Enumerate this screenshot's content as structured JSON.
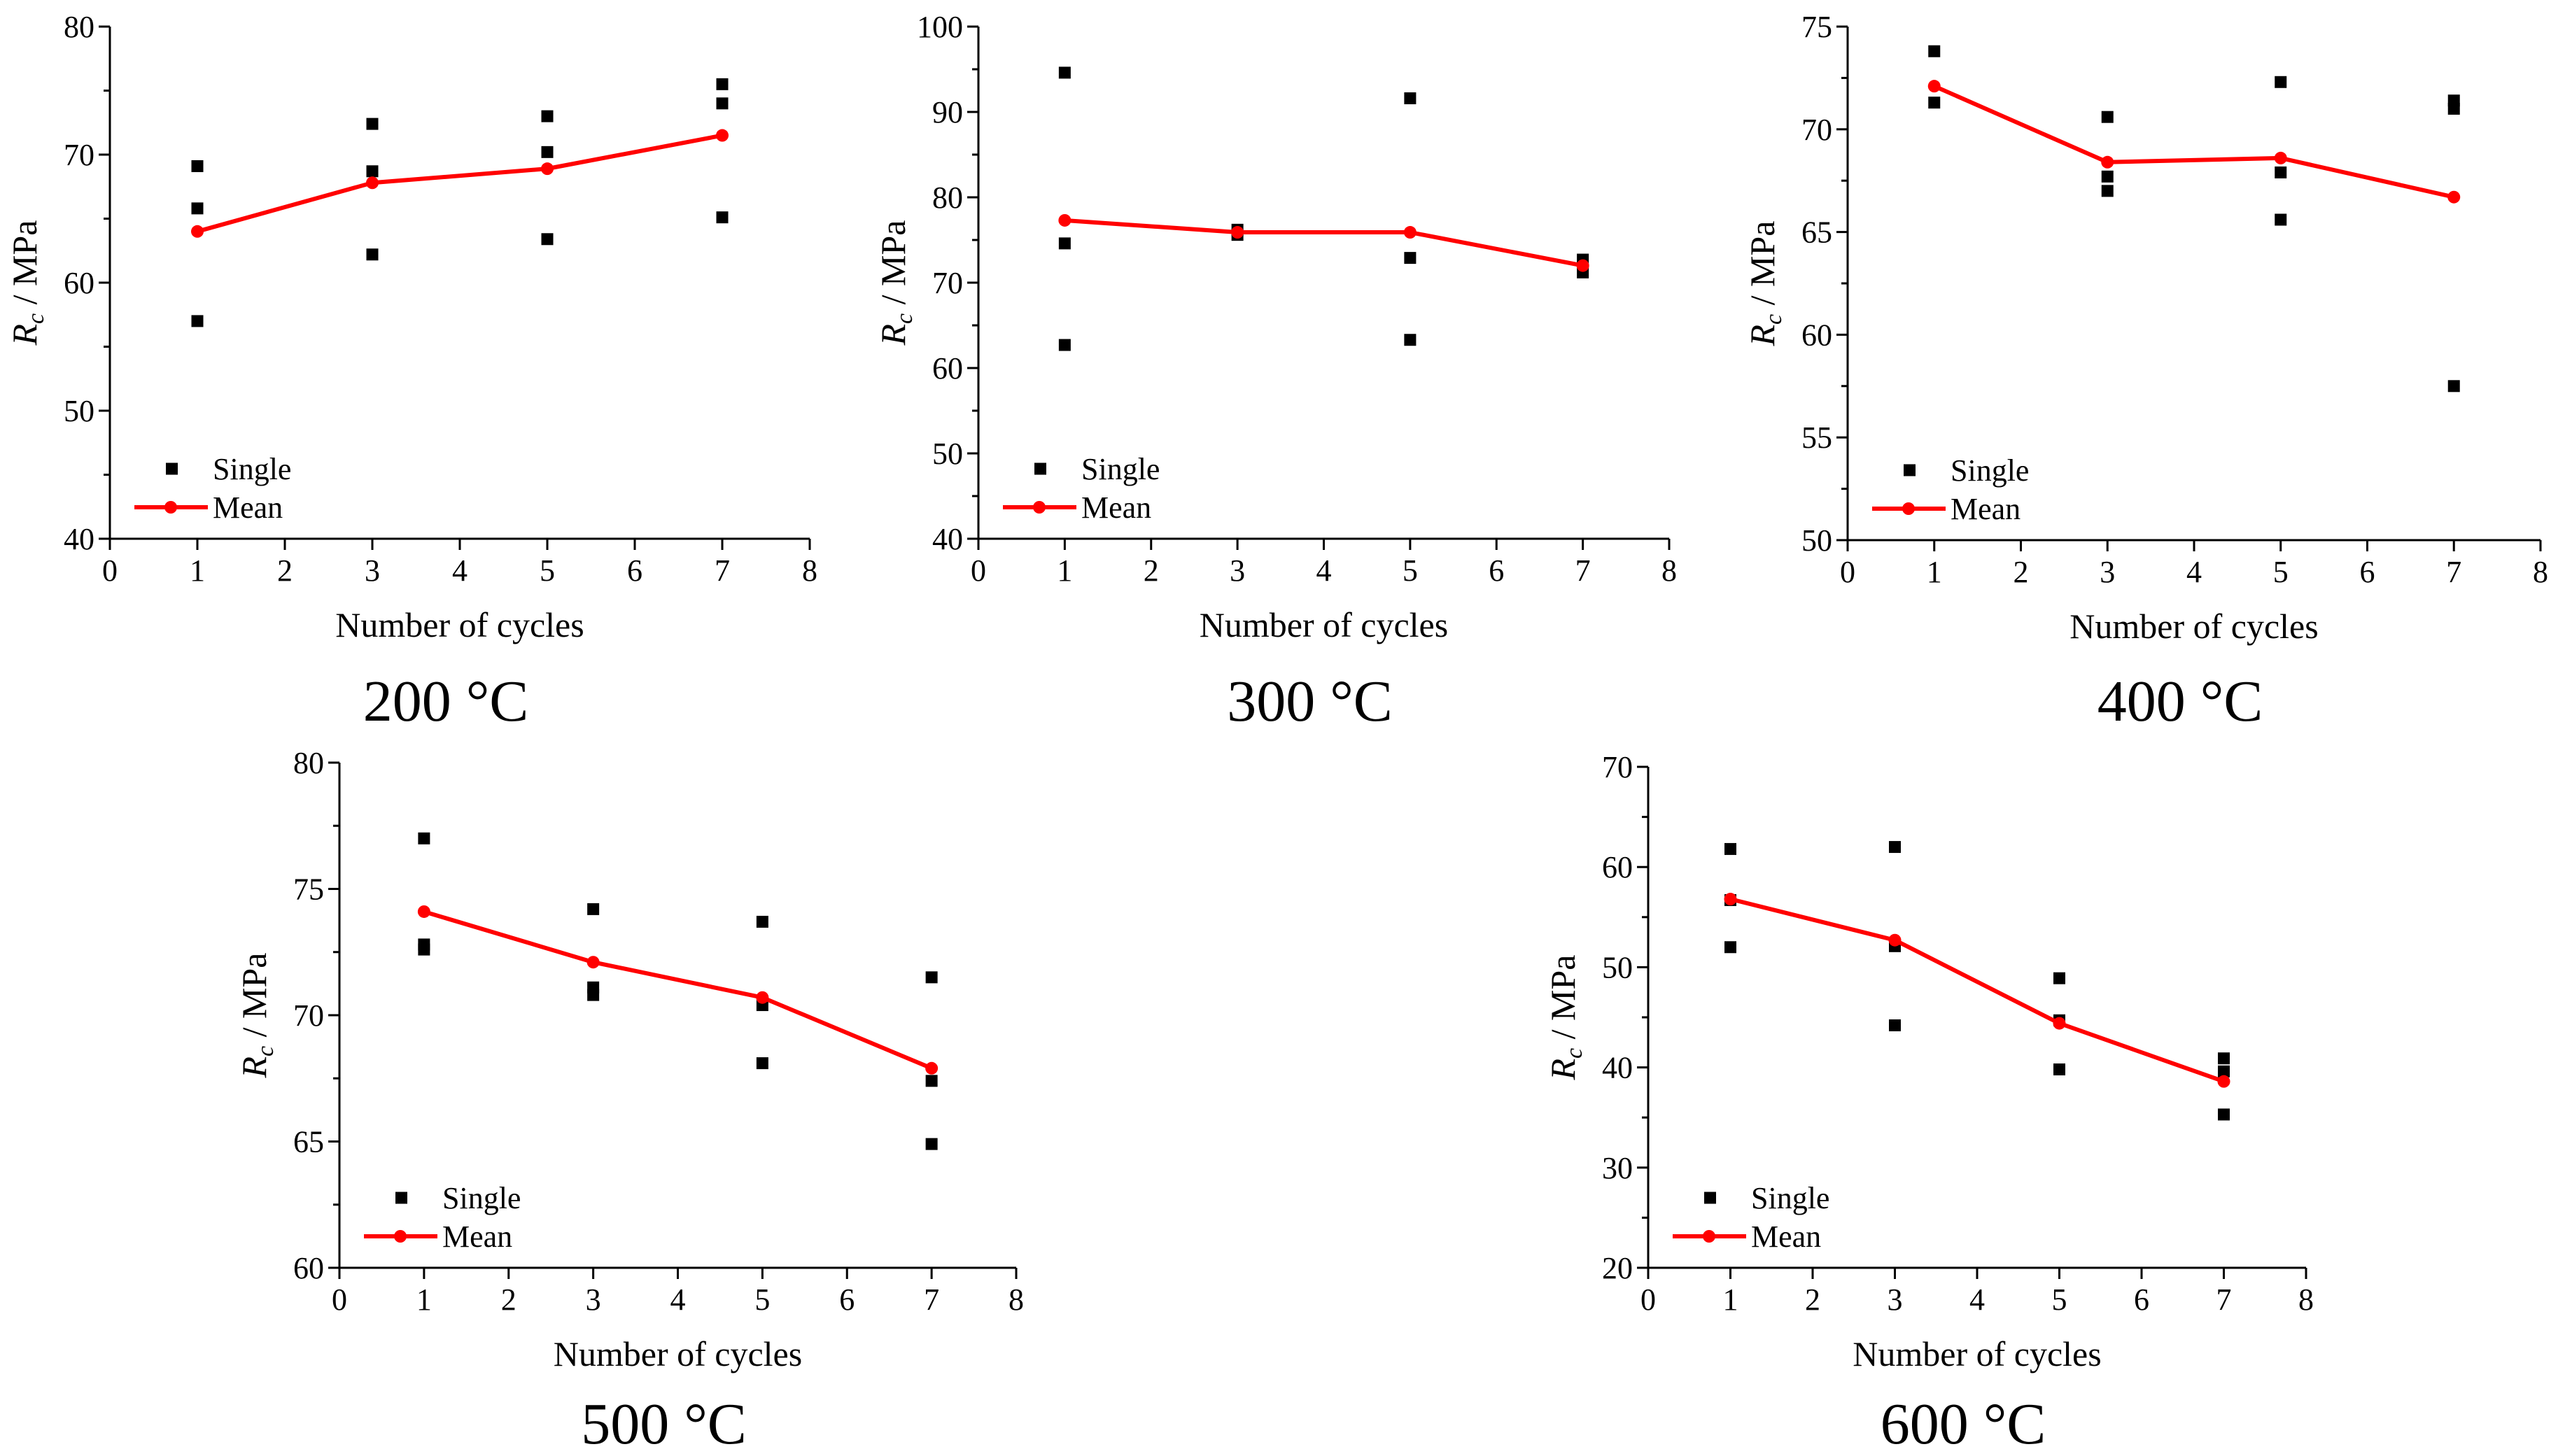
{
  "figure": {
    "legend": {
      "single_label": "Single",
      "mean_label": "Mean"
    },
    "colors": {
      "single": "#000000",
      "mean": "#ff0000",
      "axis": "#000000"
    }
  },
  "chart_data": [
    {
      "type": "scatter",
      "caption": "200 °C",
      "xlabel": "Number of cycles",
      "ylabel_symbol": "R",
      "ylabel_subscript": "c",
      "ylabel_unit": " / MPa",
      "xlim": [
        0,
        8
      ],
      "ylim": [
        40,
        80
      ],
      "xticks": [
        0,
        1,
        2,
        3,
        4,
        5,
        6,
        7,
        8
      ],
      "yticks": [
        40,
        50,
        60,
        70,
        80
      ],
      "legend_position": "bottom-left",
      "series": [
        {
          "name": "Single",
          "kind": "scatter",
          "points": [
            [
              1,
              69.1
            ],
            [
              1,
              65.8
            ],
            [
              1,
              57.0
            ],
            [
              3,
              72.4
            ],
            [
              3,
              68.7
            ],
            [
              3,
              62.2
            ],
            [
              5,
              73.0
            ],
            [
              5,
              70.2
            ],
            [
              5,
              63.4
            ],
            [
              7,
              75.5
            ],
            [
              7,
              74.0
            ],
            [
              7,
              65.1
            ]
          ]
        },
        {
          "name": "Mean",
          "kind": "line",
          "points": [
            [
              1,
              64.0
            ],
            [
              3,
              67.8
            ],
            [
              5,
              68.9
            ],
            [
              7,
              71.5
            ]
          ]
        }
      ]
    },
    {
      "type": "scatter",
      "caption": "300 °C",
      "xlabel": "Number of cycles",
      "ylabel_symbol": "R",
      "ylabel_subscript": "c",
      "ylabel_unit": " / MPa",
      "xlim": [
        0,
        8
      ],
      "ylim": [
        40,
        100
      ],
      "xticks": [
        0,
        1,
        2,
        3,
        4,
        5,
        6,
        7,
        8
      ],
      "yticks": [
        40,
        50,
        60,
        70,
        80,
        90,
        100
      ],
      "legend_position": "bottom-left",
      "series": [
        {
          "name": "Single",
          "kind": "scatter",
          "points": [
            [
              1,
              94.6
            ],
            [
              1,
              74.6
            ],
            [
              1,
              62.7
            ],
            [
              3,
              76.2
            ],
            [
              3,
              75.6
            ],
            [
              5,
              91.6
            ],
            [
              5,
              72.9
            ],
            [
              5,
              63.3
            ],
            [
              7,
              72.7
            ],
            [
              7,
              71.2
            ]
          ]
        },
        {
          "name": "Mean",
          "kind": "line",
          "points": [
            [
              1,
              77.3
            ],
            [
              3,
              75.9
            ],
            [
              5,
              75.9
            ],
            [
              7,
              72.0
            ]
          ]
        }
      ]
    },
    {
      "type": "scatter",
      "caption": "400 °C",
      "xlabel": "Number of cycles",
      "ylabel_symbol": "R",
      "ylabel_subscript": "c",
      "ylabel_unit": " / MPa",
      "xlim": [
        0,
        8
      ],
      "ylim": [
        50,
        75
      ],
      "xticks": [
        0,
        1,
        2,
        3,
        4,
        5,
        6,
        7,
        8
      ],
      "yticks": [
        50,
        55,
        60,
        65,
        70,
        75
      ],
      "legend_position": "bottom-left",
      "series": [
        {
          "name": "Single",
          "kind": "scatter",
          "points": [
            [
              1,
              73.8
            ],
            [
              1,
              71.3
            ],
            [
              3,
              70.6
            ],
            [
              3,
              67.7
            ],
            [
              3,
              67.0
            ],
            [
              5,
              72.3
            ],
            [
              5,
              67.9
            ],
            [
              5,
              65.6
            ],
            [
              7,
              71.4
            ],
            [
              7,
              71.0
            ],
            [
              7,
              57.5
            ]
          ]
        },
        {
          "name": "Mean",
          "kind": "line",
          "points": [
            [
              1,
              72.1
            ],
            [
              3,
              68.4
            ],
            [
              5,
              68.6
            ],
            [
              7,
              66.7
            ]
          ]
        }
      ]
    },
    {
      "type": "scatter",
      "caption": "500 °C",
      "xlabel": "Number of cycles",
      "ylabel_symbol": "R",
      "ylabel_subscript": "c",
      "ylabel_unit": " / MPa",
      "xlim": [
        0,
        8
      ],
      "ylim": [
        60,
        80
      ],
      "xticks": [
        0,
        1,
        2,
        3,
        4,
        5,
        6,
        7,
        8
      ],
      "yticks": [
        60,
        65,
        70,
        75,
        80
      ],
      "legend_position": "bottom-left",
      "series": [
        {
          "name": "Single",
          "kind": "scatter",
          "points": [
            [
              1,
              77.0
            ],
            [
              1,
              72.8
            ],
            [
              1,
              72.6
            ],
            [
              3,
              74.2
            ],
            [
              3,
              71.1
            ],
            [
              3,
              70.8
            ],
            [
              5,
              73.7
            ],
            [
              5,
              70.4
            ],
            [
              5,
              68.1
            ],
            [
              7,
              71.5
            ],
            [
              7,
              67.4
            ],
            [
              7,
              64.9
            ]
          ]
        },
        {
          "name": "Mean",
          "kind": "line",
          "points": [
            [
              1,
              74.1
            ],
            [
              3,
              72.1
            ],
            [
              5,
              70.7
            ],
            [
              7,
              67.9
            ]
          ]
        }
      ]
    },
    {
      "type": "scatter",
      "caption": "600 °C",
      "xlabel": "Number of cycles",
      "ylabel_symbol": "R",
      "ylabel_subscript": "c",
      "ylabel_unit": " / MPa",
      "xlim": [
        0,
        8
      ],
      "ylim": [
        20,
        70
      ],
      "xticks": [
        0,
        1,
        2,
        3,
        4,
        5,
        6,
        7,
        8
      ],
      "yticks": [
        20,
        30,
        40,
        50,
        60,
        70
      ],
      "legend_position": "bottom-left",
      "series": [
        {
          "name": "Single",
          "kind": "scatter",
          "points": [
            [
              1,
              61.8
            ],
            [
              1,
              56.7
            ],
            [
              1,
              52.0
            ],
            [
              3,
              62.0
            ],
            [
              3,
              52.1
            ],
            [
              3,
              44.2
            ],
            [
              5,
              48.9
            ],
            [
              5,
              44.7
            ],
            [
              5,
              39.8
            ],
            [
              7,
              40.9
            ],
            [
              7,
              39.6
            ],
            [
              7,
              35.3
            ]
          ]
        },
        {
          "name": "Mean",
          "kind": "line",
          "points": [
            [
              1,
              56.8
            ],
            [
              3,
              52.7
            ],
            [
              5,
              44.4
            ],
            [
              7,
              38.6
            ]
          ]
        }
      ]
    }
  ]
}
